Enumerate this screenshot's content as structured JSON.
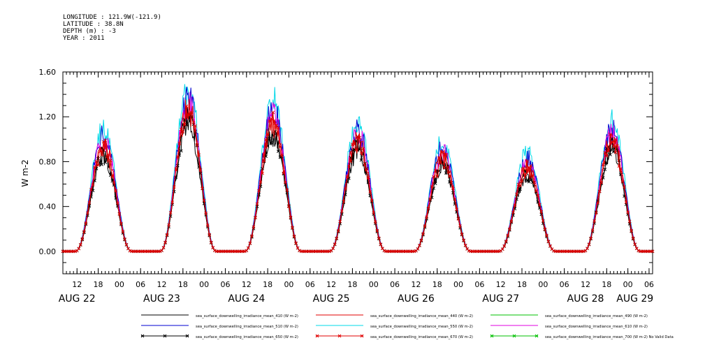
{
  "header": {
    "longitude": "LONGITUDE : 121.9W(-121.9)",
    "latitude": "LATITUDE : 38.8N",
    "depth": "DEPTH (m) : -3",
    "year": "YEAR : 2011"
  },
  "chart_data": {
    "type": "line",
    "title": "",
    "xlabel": "",
    "ylabel": "W m-2",
    "ylim": [
      -0.2,
      1.6
    ],
    "y_ticks": [
      "0.00",
      "0.40",
      "0.80",
      "1.20",
      "1.60"
    ],
    "y_tick_values": [
      0.0,
      0.4,
      0.8,
      1.2,
      1.6
    ],
    "x_range_hours": [
      8,
      175
    ],
    "x_tick_labels": [
      "12",
      "18",
      "00",
      "06",
      "12",
      "18",
      "00",
      "06",
      "12",
      "18",
      "00",
      "06",
      "12",
      "18",
      "00",
      "06",
      "12",
      "18",
      "00",
      "06",
      "12",
      "18",
      "00",
      "06",
      "12",
      "18",
      "00",
      "06"
    ],
    "x_tick_hours": [
      12,
      18,
      24,
      30,
      36,
      42,
      48,
      54,
      60,
      66,
      72,
      78,
      84,
      90,
      96,
      102,
      108,
      114,
      120,
      126,
      132,
      138,
      144,
      150,
      156,
      162,
      168,
      174
    ],
    "day_labels": [
      "AUG 22",
      "AUG 23",
      "AUG 24",
      "AUG 25",
      "AUG 26",
      "AUG 27",
      "AUG 28",
      "AUG 29"
    ],
    "day_label_hours": [
      12,
      36,
      60,
      84,
      108,
      132,
      156,
      170
    ],
    "daily_peaks": [
      0.9,
      1.2,
      1.1,
      0.95,
      0.8,
      0.72,
      0.95
    ],
    "legend": [
      {
        "name": "sea_surface_downwelling_irradiance_mean_410 (W m-2)",
        "color": "#000000",
        "marker": ""
      },
      {
        "name": "sea_surface_downwelling_irradiance_mean_440 (W m-2)",
        "color": "#e00000",
        "marker": ""
      },
      {
        "name": "sea_surface_downwelling_irradiance_mean_490 (W m-2)",
        "color": "#00c000",
        "marker": ""
      },
      {
        "name": "sea_surface_downwelling_irradiance_mean_510 (W m-2)",
        "color": "#0000d0",
        "marker": ""
      },
      {
        "name": "sea_surface_downwelling_irradiance_mean_550 (W m-2)",
        "color": "#00d8e8",
        "marker": ""
      },
      {
        "name": "sea_surface_downwelling_irradiance_mean_610 (W m-2)",
        "color": "#e000e0",
        "marker": ""
      },
      {
        "name": "sea_surface_downwelling_irradiance_mean_650 (W m-2)",
        "color": "#000000",
        "marker": "x"
      },
      {
        "name": "sea_surface_downwelling_irradiance_mean_670 (W m-2)",
        "color": "#e00000",
        "marker": "x"
      },
      {
        "name": "sea_surface_downwelling_irradiance_mean_700 (W m-2) No Valid Data",
        "color": "#00c000",
        "marker": "x"
      }
    ]
  }
}
